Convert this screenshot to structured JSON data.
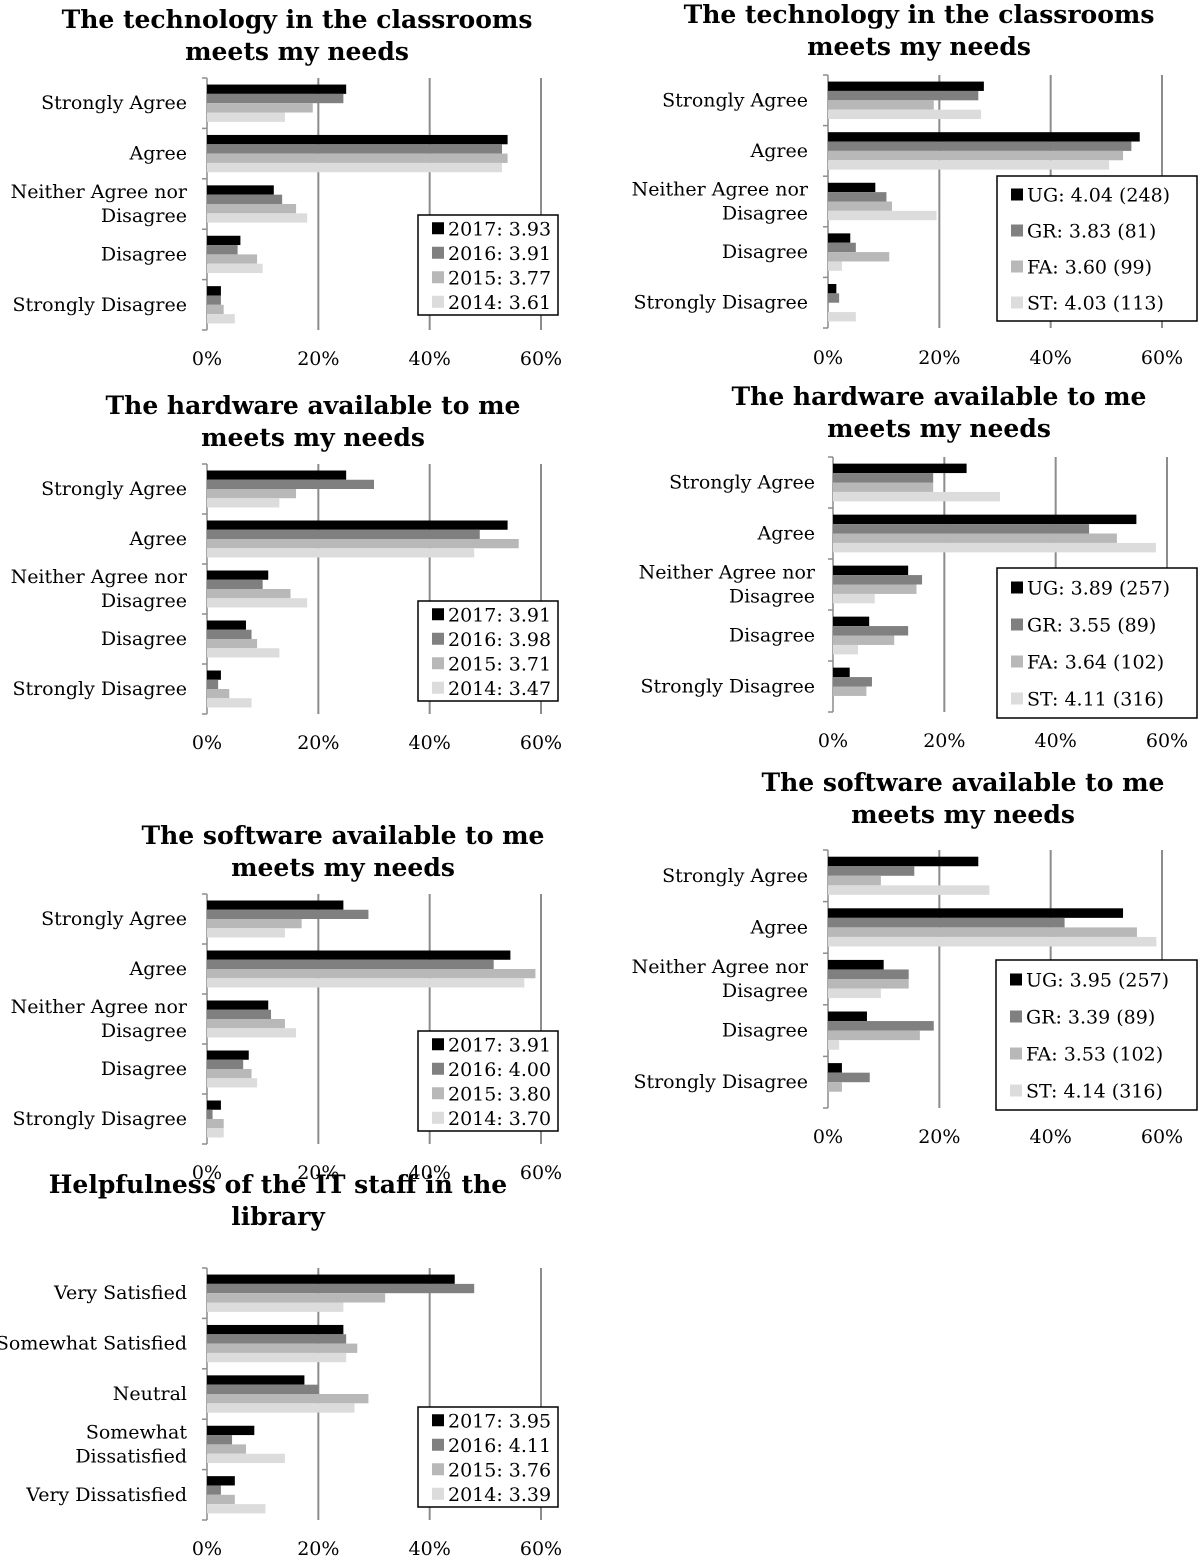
{
  "colors": {
    "s1": "#000000",
    "s2": "#808080",
    "s3": "#b8b8b8",
    "s4": "#dcdcdc",
    "grid": "#8c8c8c"
  },
  "chart_data": [
    {
      "type": "bar",
      "orientation": "horizontal",
      "title": [
        "The technology in the classrooms",
        "meets my needs"
      ],
      "categories": [
        [
          "Strongly Agree"
        ],
        [
          "Agree"
        ],
        [
          "Neither Agree nor",
          "Disagree"
        ],
        [
          "Disagree"
        ],
        [
          "Strongly Disagree"
        ]
      ],
      "xticks": [
        "0%",
        "20%",
        "40%",
        "60%"
      ],
      "xlim": [
        0,
        60
      ],
      "grid": true,
      "legend_position": "bottom-right",
      "series": [
        {
          "name": "2017: 3.93",
          "values": [
            25,
            54,
            12,
            6,
            2.5
          ]
        },
        {
          "name": "2016: 3.91",
          "values": [
            24.5,
            53,
            13.5,
            5.5,
            2.5
          ]
        },
        {
          "name": "2015: 3.77",
          "values": [
            19,
            54,
            16,
            9,
            3
          ]
        },
        {
          "name": "2014: 3.61",
          "values": [
            14,
            53,
            18,
            10,
            5
          ]
        }
      ]
    },
    {
      "type": "bar",
      "orientation": "horizontal",
      "title": [
        "The technology in the classrooms",
        "meets my needs"
      ],
      "categories": [
        [
          "Strongly Agree"
        ],
        [
          "Agree"
        ],
        [
          "Neither Agree nor",
          "Disagree"
        ],
        [
          "Disagree"
        ],
        [
          "Strongly Disagree"
        ]
      ],
      "xticks": [
        "0%",
        "20%",
        "40%",
        "60%"
      ],
      "xlim": [
        0,
        60
      ],
      "grid": true,
      "legend_position": "bottom-right",
      "series": [
        {
          "name": "UG: 4.04 (248)",
          "values": [
            28,
            56,
            8.5,
            4,
            1.5
          ]
        },
        {
          "name": "GR: 3.83 (81)",
          "values": [
            27,
            54.5,
            10.5,
            5,
            2
          ]
        },
        {
          "name": "FA: 3.60 (99)",
          "values": [
            19,
            53,
            11.5,
            11,
            0
          ]
        },
        {
          "name": "ST: 4.03 (113)",
          "values": [
            27.5,
            50.5,
            19.5,
            2.5,
            5
          ]
        }
      ]
    },
    {
      "type": "bar",
      "orientation": "horizontal",
      "title": [
        "The hardware available to me",
        "meets my needs"
      ],
      "categories": [
        [
          "Strongly Agree"
        ],
        [
          "Agree"
        ],
        [
          "Neither Agree nor",
          "Disagree"
        ],
        [
          "Disagree"
        ],
        [
          "Strongly Disagree"
        ]
      ],
      "xticks": [
        "0%",
        "20%",
        "40%",
        "60%"
      ],
      "xlim": [
        0,
        60
      ],
      "grid": true,
      "legend_position": "bottom-right",
      "series": [
        {
          "name": "2017: 3.91",
          "values": [
            25,
            54,
            11,
            7,
            2.5
          ]
        },
        {
          "name": "2016: 3.98",
          "values": [
            30,
            49,
            10,
            8,
            2
          ]
        },
        {
          "name": "2015: 3.71",
          "values": [
            16,
            56,
            15,
            9,
            4
          ]
        },
        {
          "name": "2014: 3.47",
          "values": [
            13,
            48,
            18,
            13,
            8
          ]
        }
      ]
    },
    {
      "type": "bar",
      "orientation": "horizontal",
      "title": [
        "The hardware available to me",
        "meets my needs"
      ],
      "categories": [
        [
          "Strongly Agree"
        ],
        [
          "Agree"
        ],
        [
          "Neither Agree nor",
          "Disagree"
        ],
        [
          "Disagree"
        ],
        [
          "Strongly Disagree"
        ]
      ],
      "xticks": [
        "0%",
        "20%",
        "40%",
        "60%"
      ],
      "xlim": [
        0,
        60
      ],
      "grid": true,
      "legend_position": "bottom-right",
      "series": [
        {
          "name": "UG: 3.89 (257)",
          "values": [
            24,
            54.5,
            13.5,
            6.5,
            3
          ]
        },
        {
          "name": "GR: 3.55 (89)",
          "values": [
            18,
            46,
            16,
            13.5,
            7
          ]
        },
        {
          "name": "FA: 3.64 (102)",
          "values": [
            18,
            51,
            15,
            11,
            6
          ]
        },
        {
          "name": "ST: 4.11 (316)",
          "values": [
            30,
            58,
            7.5,
            4.5,
            0
          ]
        }
      ]
    },
    {
      "type": "bar",
      "orientation": "horizontal",
      "title": [
        "The software available to me",
        "meets my needs"
      ],
      "categories": [
        [
          "Strongly Agree"
        ],
        [
          "Agree"
        ],
        [
          "Neither Agree nor",
          "Disagree"
        ],
        [
          "Disagree"
        ],
        [
          "Strongly Disagree"
        ]
      ],
      "xticks": [
        "0%",
        "20%",
        "40%",
        "60%"
      ],
      "xlim": [
        0,
        60
      ],
      "grid": true,
      "legend_position": "bottom-right",
      "series": [
        {
          "name": "2017: 3.91",
          "values": [
            24.5,
            54.5,
            11,
            7.5,
            2.5
          ]
        },
        {
          "name": "2016: 4.00",
          "values": [
            29,
            51.5,
            11.5,
            6.5,
            1
          ]
        },
        {
          "name": "2015: 3.80",
          "values": [
            17,
            59,
            14,
            8,
            3
          ]
        },
        {
          "name": "2014: 3.70",
          "values": [
            14,
            57,
            16,
            9,
            3
          ]
        }
      ]
    },
    {
      "type": "bar",
      "orientation": "horizontal",
      "title": [
        "The software available to me",
        "meets my needs"
      ],
      "categories": [
        [
          "Strongly Agree"
        ],
        [
          "Agree"
        ],
        [
          "Neither Agree nor",
          "Disagree"
        ],
        [
          "Disagree"
        ],
        [
          "Strongly Disagree"
        ]
      ],
      "xticks": [
        "0%",
        "20%",
        "40%",
        "60%"
      ],
      "xlim": [
        0,
        60
      ],
      "grid": true,
      "legend_position": "bottom-right",
      "series": [
        {
          "name": "UG: 3.95 (257)",
          "values": [
            27,
            53,
            10,
            7,
            2.5
          ]
        },
        {
          "name": "GR: 3.39 (89)",
          "values": [
            15.5,
            42.5,
            14.5,
            19,
            7.5
          ]
        },
        {
          "name": "FA: 3.53 (102)",
          "values": [
            9.5,
            55.5,
            14.5,
            16.5,
            2.5
          ]
        },
        {
          "name": "ST: 4.14 (316)",
          "values": [
            29,
            59,
            9.5,
            2,
            0
          ]
        }
      ]
    },
    {
      "type": "bar",
      "orientation": "horizontal",
      "title": [
        "Helpfulness of the IT staff in the",
        "library"
      ],
      "categories": [
        [
          "Very Satisfied"
        ],
        [
          "Somewhat Satisfied"
        ],
        [
          "Neutral"
        ],
        [
          "Somewhat",
          "Dissatisfied"
        ],
        [
          "Very Dissatisfied"
        ]
      ],
      "xticks": [
        "0%",
        "20%",
        "40%",
        "60%"
      ],
      "xlim": [
        0,
        60
      ],
      "grid": true,
      "legend_position": "bottom-right",
      "series": [
        {
          "name": "2017: 3.95",
          "values": [
            44.5,
            24.5,
            17.5,
            8.5,
            5
          ]
        },
        {
          "name": "2016: 4.11",
          "values": [
            48,
            25,
            20,
            4.5,
            2.5
          ]
        },
        {
          "name": "2015: 3.76",
          "values": [
            32,
            27,
            29,
            7,
            5
          ]
        },
        {
          "name": "2014: 3.39",
          "values": [
            24.5,
            25,
            26.5,
            14,
            10.5
          ]
        }
      ]
    }
  ]
}
